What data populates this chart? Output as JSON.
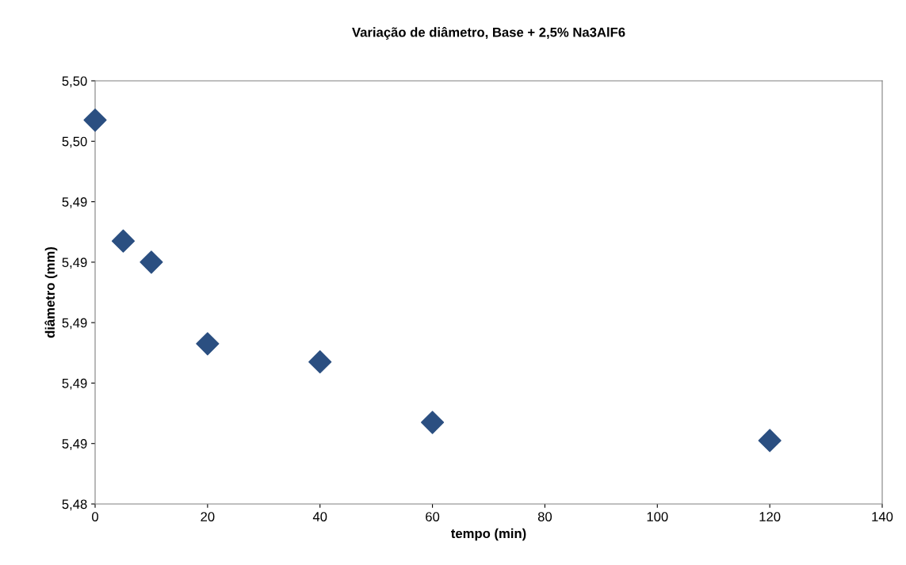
{
  "chart_data": {
    "type": "scatter",
    "title": "Variação de diâmetro, Base + 2,5% Na3AlF6",
    "xlabel": "tempo (min)",
    "ylabel": "diâmetro (mm)",
    "x": [
      0,
      5,
      10,
      20,
      40,
      60,
      120
    ],
    "series": [
      {
        "color": "#2b4f81",
        "values": [
          5.4967,
          5.4927,
          5.492,
          5.4893,
          5.4887,
          5.4867,
          5.4861
        ]
      }
    ],
    "xlim": [
      0,
      140
    ],
    "xticks": [
      0,
      20,
      40,
      60,
      80,
      100,
      120,
      140
    ],
    "ylim": [
      5.484,
      5.498
    ],
    "yticks": [
      {
        "value": 5.484,
        "label": "5,48"
      },
      {
        "value": 5.486,
        "label": "5,49"
      },
      {
        "value": 5.488,
        "label": "5,49"
      },
      {
        "value": 5.49,
        "label": "5,49"
      },
      {
        "value": 5.492,
        "label": "5,49"
      },
      {
        "value": 5.494,
        "label": "5,49"
      },
      {
        "value": 5.496,
        "label": "5,50"
      },
      {
        "value": 5.498,
        "label": "5,50"
      }
    ],
    "marker": "diamond",
    "grid": false,
    "legend": false
  }
}
